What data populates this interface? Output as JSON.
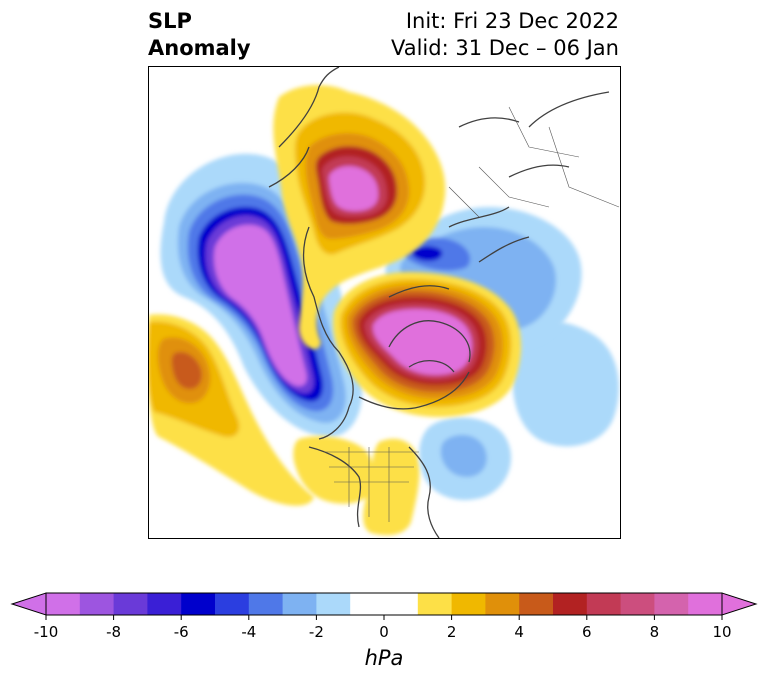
{
  "title": {
    "left_line1": "SLP",
    "left_line2": "Anomaly",
    "init": "Init: Fri 23 Dec 2022",
    "valid": "Valid: 31 Dec – 06 Jan"
  },
  "colorbar": {
    "min": -10,
    "max": 10,
    "step": 1,
    "extend": "both",
    "unit": "hPa",
    "tick_values": [
      -10,
      -8,
      -6,
      -4,
      -2,
      0,
      2,
      4,
      6,
      8,
      10
    ],
    "tick_labels": [
      "-10",
      "-8",
      "-6",
      "-4",
      "-2",
      "0",
      "2",
      "4",
      "6",
      "8",
      "10"
    ],
    "bins": [
      {
        "range": [
          -10,
          -9
        ],
        "color": "#d070e8"
      },
      {
        "range": [
          -9,
          -8
        ],
        "color": "#9d55e0"
      },
      {
        "range": [
          -8,
          -7
        ],
        "color": "#6a3ad8"
      },
      {
        "range": [
          -7,
          -6
        ],
        "color": "#3a1fd6"
      },
      {
        "range": [
          -6,
          -5
        ],
        "color": "#0000cc"
      },
      {
        "range": [
          -5,
          -4
        ],
        "color": "#2b3ee0"
      },
      {
        "range": [
          -4,
          -3
        ],
        "color": "#4f78e8"
      },
      {
        "range": [
          -3,
          -2
        ],
        "color": "#7eb2f2"
      },
      {
        "range": [
          -2,
          -1
        ],
        "color": "#abd9fa"
      },
      {
        "range": [
          -1,
          0
        ],
        "color": "#ffffff"
      },
      {
        "range": [
          0,
          1
        ],
        "color": "#ffffff"
      },
      {
        "range": [
          1,
          2
        ],
        "color": "#fde047"
      },
      {
        "range": [
          2,
          3
        ],
        "color": "#f0b800"
      },
      {
        "range": [
          3,
          4
        ],
        "color": "#e0900a"
      },
      {
        "range": [
          4,
          5
        ],
        "color": "#c85a1a"
      },
      {
        "range": [
          5,
          6
        ],
        "color": "#b22222"
      },
      {
        "range": [
          6,
          7
        ],
        "color": "#c23a55"
      },
      {
        "range": [
          7,
          8
        ],
        "color": "#cc4e7e"
      },
      {
        "range": [
          8,
          9
        ],
        "color": "#d463ad"
      },
      {
        "range": [
          9,
          10
        ],
        "color": "#e070dc"
      }
    ],
    "under_color": "#d070e8",
    "over_color": "#e070dc"
  },
  "map": {
    "field": "SLP anomaly",
    "projection": "polar stereographic (North Pole)",
    "features": [
      {
        "name": "Pacific low",
        "peak_hPa": -10,
        "sign": "negative"
      },
      {
        "name": "Arctic/Greenland high",
        "peak_hPa": 10,
        "sign": "positive"
      },
      {
        "name": "Siberia/NE Asia high",
        "peak_hPa": 10,
        "sign": "positive"
      },
      {
        "name": "Eurasian Arctic low",
        "peak_hPa": -7,
        "sign": "negative"
      },
      {
        "name": "Subtropical Pacific high",
        "peak_hPa": 5,
        "sign": "positive"
      },
      {
        "name": "North American ridge",
        "peak_hPa": 2,
        "sign": "positive"
      },
      {
        "name": "Atlantic low",
        "peak_hPa": -3,
        "sign": "negative"
      }
    ]
  }
}
